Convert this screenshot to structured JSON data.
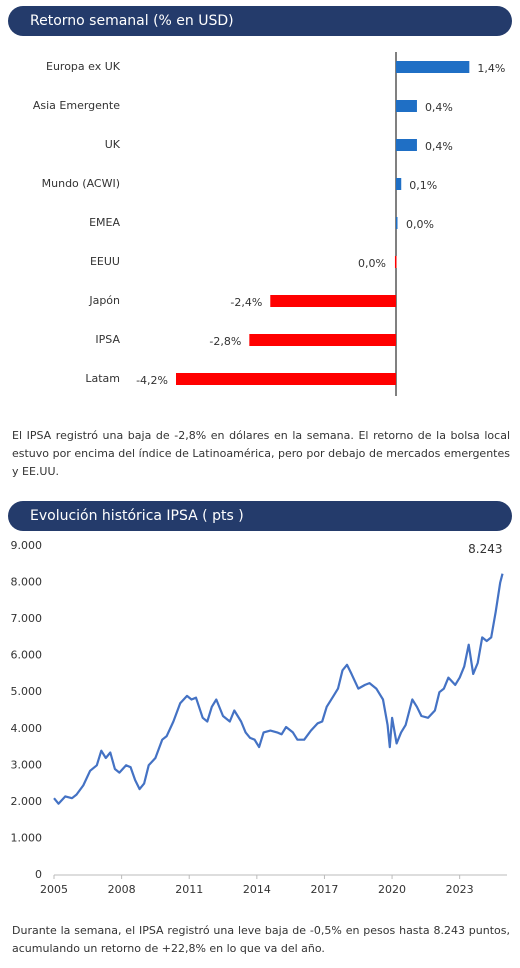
{
  "headers": [
    "Retorno semanal (% en USD)",
    "Evolución histórica IPSA ( pts )"
  ],
  "paragraphs": [
    "El IPSA registró una baja de -2,8% en dólares en la semana. El retorno de la bolsa local estuvo por encima del índice de Latinoamérica, pero por debajo de mercados emergentes y EE.UU.",
    "Durante la semana, el IPSA registró una leve baja de -0,5% en pesos hasta 8.243 puntos, acumulando un retorno de +22,8% en lo que va del año."
  ],
  "chart_data": [
    {
      "type": "hbar",
      "categories": [
        "Europa ex UK",
        "Asia Emergente",
        "UK",
        "Mundo (ACWI)",
        "EMEA",
        "EEUU",
        "Japón",
        "IPSA",
        "Latam"
      ],
      "values": [
        1.4,
        0.4,
        0.4,
        0.1,
        0.02,
        -0.02,
        -2.4,
        -2.8,
        -4.2
      ],
      "value_labels": [
        "1,4%",
        "0,4%",
        "0,4%",
        "0,1%",
        "0,0%",
        "0,0%",
        "-2,4%",
        "-2,8%",
        "-4,2%"
      ],
      "colors": [
        "#1f6fc5",
        "#1f6fc5",
        "#1f6fc5",
        "#1f6fc5",
        "#1f6fc5",
        "#ff0000",
        "#ff0000",
        "#ff0000",
        "#ff0000"
      ]
    },
    {
      "type": "line",
      "color": "#4472c4",
      "annotation": "8.243",
      "x": [
        2005.0,
        2005.2,
        2005.5,
        2005.8,
        2006.0,
        2006.3,
        2006.6,
        2006.9,
        2007.1,
        2007.3,
        2007.5,
        2007.7,
        2007.9,
        2008.2,
        2008.4,
        2008.6,
        2008.8,
        2009.0,
        2009.2,
        2009.5,
        2009.8,
        2010.0,
        2010.3,
        2010.6,
        2010.9,
        2011.1,
        2011.3,
        2011.6,
        2011.8,
        2012.0,
        2012.2,
        2012.5,
        2012.8,
        2013.0,
        2013.3,
        2013.5,
        2013.7,
        2013.9,
        2014.1,
        2014.3,
        2014.6,
        2014.9,
        2015.1,
        2015.3,
        2015.6,
        2015.8,
        2016.1,
        2016.4,
        2016.7,
        2016.9,
        2017.1,
        2017.4,
        2017.6,
        2017.8,
        2018.0,
        2018.2,
        2018.5,
        2018.8,
        2019.0,
        2019.3,
        2019.6,
        2019.8,
        2019.9,
        2020.0,
        2020.2,
        2020.4,
        2020.6,
        2020.9,
        2021.1,
        2021.3,
        2021.6,
        2021.9,
        2022.1,
        2022.3,
        2022.5,
        2022.8,
        2023.0,
        2023.2,
        2023.4,
        2023.6,
        2023.8,
        2024.0,
        2024.2,
        2024.4,
        2024.6,
        2024.8,
        2024.9
      ],
      "values": [
        2100,
        1950,
        2150,
        2100,
        2200,
        2450,
        2850,
        3000,
        3400,
        3200,
        3350,
        2900,
        2800,
        3000,
        2950,
        2600,
        2350,
        2500,
        3000,
        3200,
        3700,
        3800,
        4200,
        4700,
        4900,
        4800,
        4850,
        4300,
        4200,
        4600,
        4800,
        4350,
        4200,
        4500,
        4200,
        3900,
        3750,
        3700,
        3500,
        3900,
        3950,
        3900,
        3850,
        4050,
        3900,
        3700,
        3700,
        3950,
        4150,
        4200,
        4600,
        4900,
        5100,
        5600,
        5750,
        5500,
        5100,
        5200,
        5250,
        5100,
        4800,
        4100,
        3500,
        4300,
        3600,
        3900,
        4100,
        4800,
        4600,
        4350,
        4300,
        4500,
        5000,
        5100,
        5400,
        5200,
        5400,
        5700,
        6300,
        5500,
        5800,
        6500,
        6400,
        6500,
        7200,
        8000,
        8243
      ],
      "xlim": [
        2005,
        2025.1
      ],
      "ylim": [
        0,
        9000
      ],
      "xticks": [
        2005,
        2008,
        2011,
        2014,
        2017,
        2020,
        2023
      ],
      "yticks": [
        0,
        {
          "value": 1000,
          "label": "1.000"
        },
        {
          "value": 2000,
          "label": "2.000"
        },
        {
          "value": 3000,
          "label": "3.000"
        },
        {
          "value": 4000,
          "label": "4.000"
        },
        {
          "value": 5000,
          "label": "5.000"
        },
        {
          "value": 6000,
          "label": "6.000"
        },
        {
          "value": 7000,
          "label": "7.000"
        },
        {
          "value": 8000,
          "label": "8.000"
        },
        {
          "value": 9000,
          "label": "9.000"
        }
      ]
    }
  ]
}
